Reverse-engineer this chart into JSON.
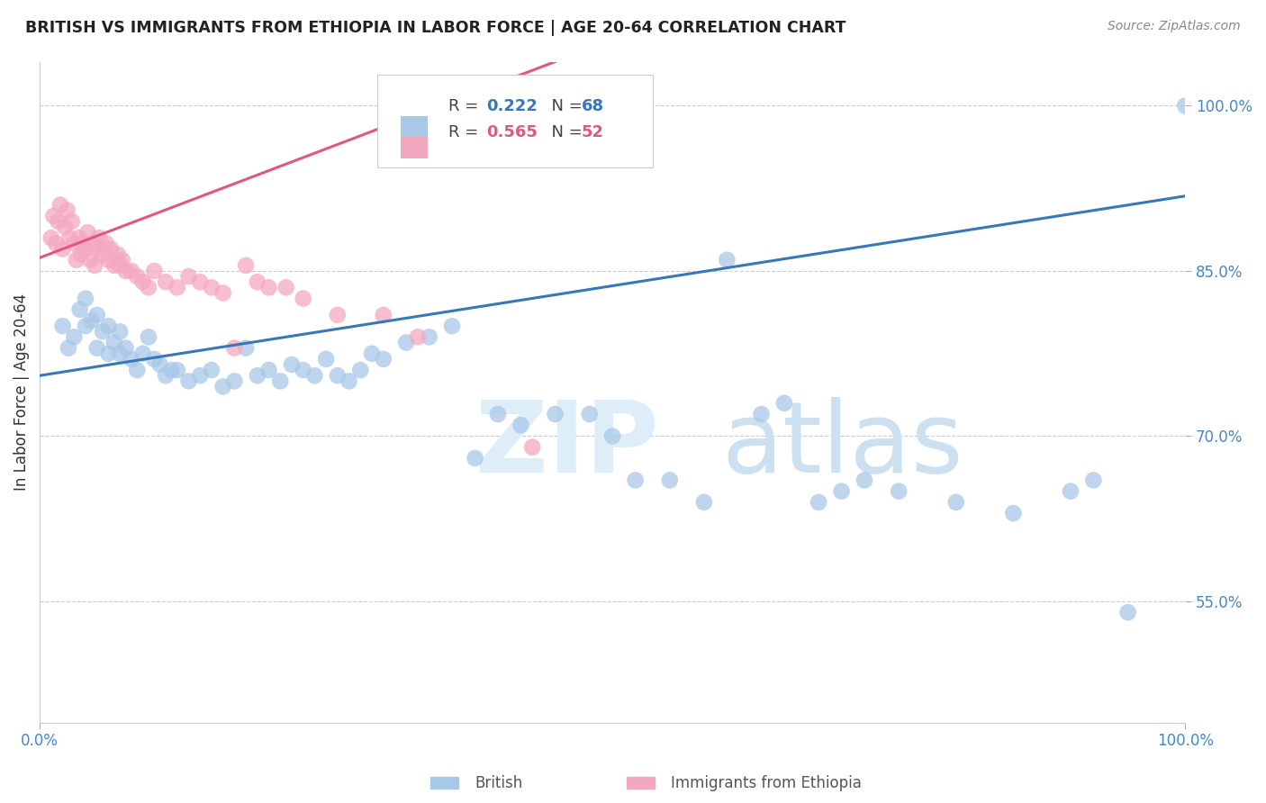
{
  "title": "BRITISH VS IMMIGRANTS FROM ETHIOPIA IN LABOR FORCE | AGE 20-64 CORRELATION CHART",
  "source": "Source: ZipAtlas.com",
  "ylabel": "In Labor Force | Age 20-64",
  "ytick_labels": [
    "55.0%",
    "70.0%",
    "85.0%",
    "100.0%"
  ],
  "ytick_values": [
    0.55,
    0.7,
    0.85,
    1.0
  ],
  "xlim": [
    0.0,
    1.0
  ],
  "ylim": [
    0.44,
    1.04
  ],
  "R_blue": 0.222,
  "N_blue": 68,
  "R_pink": 0.565,
  "N_pink": 52,
  "blue_color": "#a8c8e8",
  "pink_color": "#f4a8c0",
  "blue_line_color": "#3878b8",
  "pink_line_color": "#e05880",
  "legend_blue_label": "British",
  "legend_pink_label": "Immigrants from Ethiopia",
  "blue_line_x0": 0.0,
  "blue_line_y0": 0.755,
  "blue_line_x1": 1.0,
  "blue_line_y1": 0.918,
  "pink_line_x0": 0.0,
  "pink_line_y0": 0.862,
  "pink_line_x1": 0.45,
  "pink_line_y1": 1.04,
  "blue_scatter_x": [
    0.02,
    0.025,
    0.03,
    0.035,
    0.04,
    0.04,
    0.045,
    0.05,
    0.05,
    0.055,
    0.06,
    0.06,
    0.065,
    0.07,
    0.07,
    0.075,
    0.08,
    0.085,
    0.09,
    0.095,
    0.1,
    0.105,
    0.11,
    0.115,
    0.12,
    0.13,
    0.14,
    0.15,
    0.16,
    0.17,
    0.18,
    0.19,
    0.2,
    0.21,
    0.22,
    0.23,
    0.24,
    0.25,
    0.26,
    0.27,
    0.28,
    0.29,
    0.3,
    0.32,
    0.34,
    0.36,
    0.38,
    0.4,
    0.42,
    0.45,
    0.48,
    0.5,
    0.52,
    0.55,
    0.58,
    0.6,
    0.63,
    0.65,
    0.68,
    0.7,
    0.72,
    0.75,
    0.8,
    0.85,
    0.9,
    0.92,
    0.95,
    1.0
  ],
  "blue_scatter_y": [
    0.8,
    0.78,
    0.79,
    0.815,
    0.825,
    0.8,
    0.805,
    0.78,
    0.81,
    0.795,
    0.775,
    0.8,
    0.785,
    0.775,
    0.795,
    0.78,
    0.77,
    0.76,
    0.775,
    0.79,
    0.77,
    0.765,
    0.755,
    0.76,
    0.76,
    0.75,
    0.755,
    0.76,
    0.745,
    0.75,
    0.78,
    0.755,
    0.76,
    0.75,
    0.765,
    0.76,
    0.755,
    0.77,
    0.755,
    0.75,
    0.76,
    0.775,
    0.77,
    0.785,
    0.79,
    0.8,
    0.68,
    0.72,
    0.71,
    0.72,
    0.72,
    0.7,
    0.66,
    0.66,
    0.64,
    0.86,
    0.72,
    0.73,
    0.64,
    0.65,
    0.66,
    0.65,
    0.64,
    0.63,
    0.65,
    0.66,
    0.54,
    1.0
  ],
  "pink_scatter_x": [
    0.01,
    0.012,
    0.014,
    0.016,
    0.018,
    0.02,
    0.022,
    0.024,
    0.026,
    0.028,
    0.03,
    0.032,
    0.034,
    0.036,
    0.038,
    0.04,
    0.042,
    0.044,
    0.046,
    0.048,
    0.05,
    0.052,
    0.055,
    0.058,
    0.06,
    0.062,
    0.065,
    0.068,
    0.07,
    0.072,
    0.075,
    0.08,
    0.085,
    0.09,
    0.095,
    0.1,
    0.11,
    0.12,
    0.13,
    0.14,
    0.15,
    0.16,
    0.17,
    0.18,
    0.19,
    0.2,
    0.215,
    0.23,
    0.26,
    0.3,
    0.33,
    0.43
  ],
  "pink_scatter_y": [
    0.88,
    0.9,
    0.875,
    0.895,
    0.91,
    0.87,
    0.89,
    0.905,
    0.88,
    0.895,
    0.875,
    0.86,
    0.88,
    0.865,
    0.875,
    0.87,
    0.885,
    0.86,
    0.875,
    0.855,
    0.87,
    0.88,
    0.865,
    0.875,
    0.86,
    0.87,
    0.855,
    0.865,
    0.855,
    0.86,
    0.85,
    0.85,
    0.845,
    0.84,
    0.835,
    0.85,
    0.84,
    0.835,
    0.845,
    0.84,
    0.835,
    0.83,
    0.78,
    0.855,
    0.84,
    0.835,
    0.835,
    0.825,
    0.81,
    0.81,
    0.79,
    0.69
  ]
}
